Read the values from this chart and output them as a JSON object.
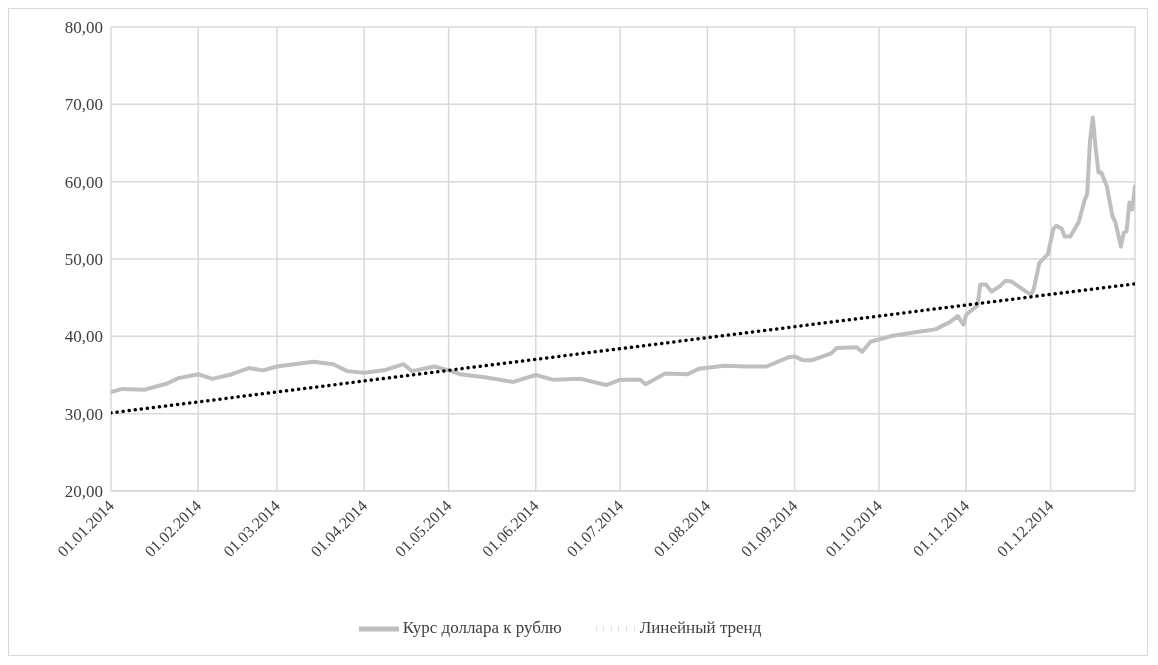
{
  "chart_data": {
    "type": "line",
    "legend": "bottom",
    "grid": true,
    "marker": "none",
    "xlim": [
      "2014-01-01",
      "2014-12-31"
    ],
    "xticks": [
      {
        "value": "2014-01-01",
        "label": "01.01.2014"
      },
      {
        "value": "2014-02-01",
        "label": "01.02.2014"
      },
      {
        "value": "2014-03-01",
        "label": "01.03.2014"
      },
      {
        "value": "2014-04-01",
        "label": "01.04.2014"
      },
      {
        "value": "2014-05-01",
        "label": "01.05.2014"
      },
      {
        "value": "2014-06-01",
        "label": "01.06.2014"
      },
      {
        "value": "2014-07-01",
        "label": "01.07.2014"
      },
      {
        "value": "2014-08-01",
        "label": "01.08.2014"
      },
      {
        "value": "2014-09-01",
        "label": "01.09.2014"
      },
      {
        "value": "2014-10-01",
        "label": "01.10.2014"
      },
      {
        "value": "2014-11-01",
        "label": "01.11.2014"
      },
      {
        "value": "2014-12-01",
        "label": "01.12.2014"
      }
    ],
    "ylim": [
      20,
      80
    ],
    "yticks": [
      {
        "value": 20,
        "label": "20,00"
      },
      {
        "value": 30,
        "label": "30,00"
      },
      {
        "value": 40,
        "label": "40,00"
      },
      {
        "value": 50,
        "label": "50,00"
      },
      {
        "value": 60,
        "label": "60,00"
      },
      {
        "value": 70,
        "label": "70,00"
      },
      {
        "value": 80,
        "label": "80,00"
      }
    ],
    "series": [
      {
        "name": "Курс доллара к рублю",
        "color": "#bfbfbf",
        "line_style": "solid",
        "x": [
          "2014-01-01",
          "2014-01-05",
          "2014-01-13",
          "2014-01-21",
          "2014-01-25",
          "2014-02-01",
          "2014-02-06",
          "2014-02-13",
          "2014-02-19",
          "2014-02-24",
          "2014-03-01",
          "2014-03-07",
          "2014-03-14",
          "2014-03-21",
          "2014-03-26",
          "2014-04-01",
          "2014-04-08",
          "2014-04-15",
          "2014-04-18",
          "2014-04-26",
          "2014-05-01",
          "2014-05-05",
          "2014-05-14",
          "2014-05-24",
          "2014-06-01",
          "2014-06-07",
          "2014-06-17",
          "2014-06-26",
          "2014-07-01",
          "2014-07-08",
          "2014-07-10",
          "2014-07-17",
          "2014-07-25",
          "2014-07-29",
          "2014-08-07",
          "2014-08-15",
          "2014-08-22",
          "2014-08-30",
          "2014-09-01",
          "2014-09-04",
          "2014-09-07",
          "2014-09-14",
          "2014-09-16",
          "2014-09-23",
          "2014-09-25",
          "2014-09-28",
          "2014-10-05",
          "2014-10-15",
          "2014-10-21",
          "2014-10-26",
          "2014-10-29",
          "2014-10-31",
          "2014-11-01",
          "2014-11-05",
          "2014-11-06",
          "2014-11-08",
          "2014-11-10",
          "2014-11-13",
          "2014-11-15",
          "2014-11-17",
          "2014-11-21",
          "2014-11-24",
          "2014-11-25",
          "2014-11-27",
          "2014-11-30",
          "2014-12-02",
          "2014-12-03",
          "2014-12-05",
          "2014-12-06",
          "2014-12-08",
          "2014-12-11",
          "2014-12-13",
          "2014-12-14",
          "2014-12-15",
          "2014-12-16",
          "2014-12-17",
          "2014-12-18",
          "2014-12-19",
          "2014-12-21",
          "2014-12-23",
          "2014-12-24",
          "2014-12-26",
          "2014-12-27",
          "2014-12-28",
          "2014-12-29",
          "2014-12-30",
          "2014-12-31"
        ],
        "values": [
          32.8,
          33.2,
          33.1,
          33.9,
          34.6,
          35.1,
          34.5,
          35.1,
          35.9,
          35.6,
          36.1,
          36.4,
          36.7,
          36.4,
          35.5,
          35.3,
          35.6,
          36.4,
          35.5,
          36.1,
          35.6,
          35.1,
          34.7,
          34.1,
          35.0,
          34.4,
          34.5,
          33.7,
          34.4,
          34.4,
          33.8,
          35.2,
          35.1,
          35.8,
          36.2,
          36.1,
          36.1,
          37.3,
          37.4,
          36.9,
          36.9,
          37.8,
          38.5,
          38.6,
          38.0,
          39.3,
          40.0,
          40.6,
          40.9,
          41.8,
          42.6,
          41.5,
          42.8,
          44.0,
          46.7,
          46.7,
          45.8,
          46.5,
          47.2,
          47.1,
          46.1,
          45.4,
          46.1,
          49.5,
          50.6,
          53.9,
          54.3,
          53.9,
          52.9,
          52.9,
          54.8,
          57.5,
          58.4,
          65.3,
          68.3,
          64.4,
          61.2,
          61.2,
          59.4,
          55.5,
          54.8,
          51.6,
          53.4,
          53.6,
          57.3,
          56.4,
          59.4
        ]
      },
      {
        "name": "Линейный  тренд",
        "type": "line",
        "color": "#000000",
        "line_style": "dotted",
        "x": [
          "2014-01-01",
          "2014-12-31"
        ],
        "values": [
          30.1,
          46.8
        ]
      }
    ]
  }
}
